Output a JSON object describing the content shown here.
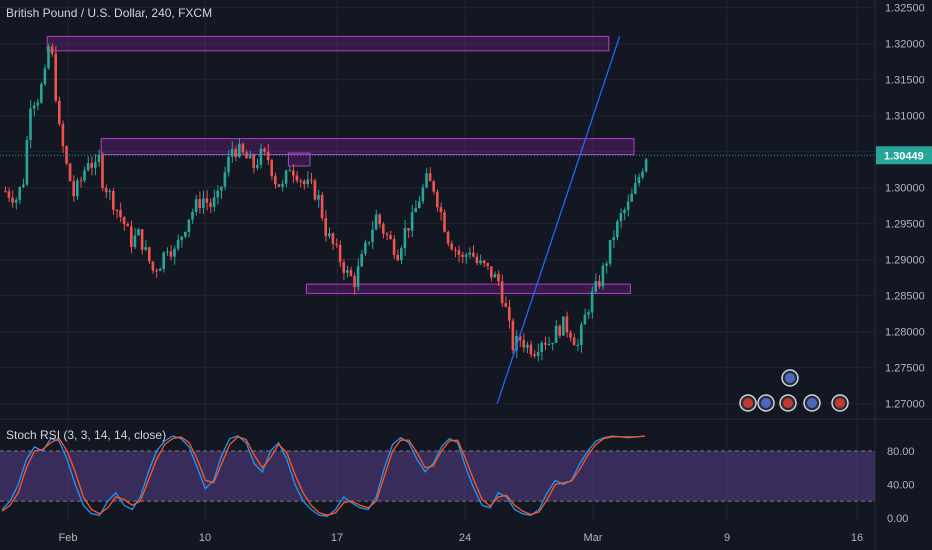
{
  "header": {
    "title": "British Pound / U.S. Dollar, 240, FXCM"
  },
  "rsi_panel": {
    "title": "Stoch RSI (3, 3, 14, 14, close)"
  },
  "colors": {
    "background": "#131722",
    "grid": "#1f2433",
    "up": "#26a69a",
    "down": "#ef5350",
    "zone_fill": "rgba(156,39,176,0.25)",
    "zone_stroke": "#b040d0",
    "trend_line": "#2962ff",
    "price_tag": "#26a69a",
    "k_line": "#2196f3",
    "d_line": "#ff5722",
    "rsi_band": "rgba(126,87,194,0.35)"
  },
  "chart_data": [
    {
      "type": "candlestick",
      "title": "British Pound / U.S. Dollar, 240, FXCM",
      "x_ticks": [
        "Feb",
        "10",
        "17",
        "24",
        "Mar",
        "9",
        "16"
      ],
      "y_ticks": [
        "1.32500",
        "1.32000",
        "1.31500",
        "1.31000",
        "1.30500",
        "1.30000",
        "1.29500",
        "1.29000",
        "1.28500",
        "1.28000",
        "1.27500",
        "1.27000"
      ],
      "ylim": [
        1.268,
        1.3255
      ],
      "current_price": "1.30449",
      "close_path": [
        [
          0,
          1.2995
        ],
        [
          3,
          1.2985
        ],
        [
          5,
          1.301
        ],
        [
          7,
          1.312
        ],
        [
          9,
          1.3125
        ],
        [
          11,
          1.3155
        ],
        [
          12,
          1.3195
        ],
        [
          13,
          1.318
        ],
        [
          14,
          1.313
        ],
        [
          15,
          1.308
        ],
        [
          17,
          1.303
        ],
        [
          19,
          1.299
        ],
        [
          21,
          1.301
        ],
        [
          23,
          1.304
        ],
        [
          25,
          1.3025
        ],
        [
          26,
          1.304
        ],
        [
          27,
          1.301
        ],
        [
          29,
          1.299
        ],
        [
          31,
          1.297
        ],
        [
          33,
          1.295
        ],
        [
          35,
          1.2925
        ],
        [
          37,
          1.2935
        ],
        [
          39,
          1.291
        ],
        [
          41,
          1.2885
        ],
        [
          43,
          1.2895
        ],
        [
          45,
          1.292
        ],
        [
          47,
          1.291
        ],
        [
          49,
          1.2935
        ],
        [
          51,
          1.296
        ],
        [
          53,
          1.2975
        ],
        [
          55,
          1.2985
        ],
        [
          57,
          1.2975
        ],
        [
          59,
          1.2985
        ],
        [
          61,
          1.302
        ],
        [
          63,
          1.3055
        ],
        [
          65,
          1.305
        ],
        [
          67,
          1.304
        ],
        [
          69,
          1.303
        ],
        [
          71,
          1.3045
        ],
        [
          73,
          1.304
        ],
        [
          75,
          1.301
        ],
        [
          77,
          1.3
        ],
        [
          79,
          1.303
        ],
        [
          81,
          1.302
        ],
        [
          83,
          1.3005
        ],
        [
          85,
          1.3
        ],
        [
          87,
          1.2985
        ],
        [
          89,
          1.294
        ],
        [
          91,
          1.292
        ],
        [
          93,
          1.29
        ],
        [
          95,
          1.288
        ],
        [
          97,
          1.287
        ],
        [
          99,
          1.29
        ],
        [
          101,
          1.293
        ],
        [
          103,
          1.296
        ],
        [
          105,
          1.294
        ],
        [
          107,
          1.2925
        ],
        [
          109,
          1.291
        ],
        [
          111,
          1.294
        ],
        [
          113,
          1.2955
        ],
        [
          115,
          1.2985
        ],
        [
          117,
          1.301
        ],
        [
          119,
          1.3
        ],
        [
          121,
          1.2965
        ],
        [
          123,
          1.293
        ],
        [
          125,
          1.2915
        ],
        [
          127,
          1.29
        ],
        [
          129,
          1.2915
        ],
        [
          131,
          1.2895
        ],
        [
          133,
          1.289
        ],
        [
          135,
          1.288
        ],
        [
          137,
          1.287
        ],
        [
          139,
          1.283
        ],
        [
          141,
          1.278
        ],
        [
          143,
          1.279
        ],
        [
          145,
          1.278
        ],
        [
          147,
          1.2775
        ],
        [
          149,
          1.279
        ],
        [
          151,
          1.2785
        ],
        [
          153,
          1.28
        ],
        [
          155,
          1.281
        ],
        [
          157,
          1.28
        ],
        [
          159,
          1.278
        ],
        [
          161,
          1.282
        ],
        [
          163,
          1.285
        ],
        [
          165,
          1.287
        ],
        [
          167,
          1.29
        ],
        [
          169,
          1.2935
        ],
        [
          171,
          1.296
        ],
        [
          173,
          1.2975
        ],
        [
          175,
          1.3
        ],
        [
          177,
          1.303
        ],
        [
          178,
          1.30449
        ]
      ],
      "zones": [
        {
          "x0": 12,
          "x1": 168,
          "y0": 1.319,
          "y1": 1.321
        },
        {
          "x0": 27,
          "x1": 175,
          "y0": 1.3046,
          "y1": 1.3068
        },
        {
          "x0": 79,
          "x1": 85,
          "y0": 1.303,
          "y1": 1.3048
        },
        {
          "x0": 84,
          "x1": 174,
          "y0": 1.2853,
          "y1": 1.2866
        }
      ],
      "trend_line": {
        "x0": 137,
        "y0": 1.27,
        "x1": 171,
        "y1": 1.321
      }
    },
    {
      "type": "line",
      "title": "Stoch RSI (3, 3, 14, 14, close)",
      "y_ticks": [
        "80.00",
        "40.00",
        "0.00"
      ],
      "ylim": [
        -5,
        110
      ],
      "band": [
        20,
        80
      ],
      "series": [
        {
          "values": [
            10,
            20,
            40,
            70,
            85,
            80,
            95,
            92,
            70,
            40,
            15,
            5,
            3,
            20,
            30,
            15,
            10,
            25,
            55,
            80,
            92,
            98,
            95,
            85,
            60,
            35,
            45,
            75,
            95,
            98,
            90,
            65,
            55,
            80,
            90,
            70,
            40,
            20,
            10,
            3,
            2,
            10,
            25,
            18,
            12,
            10,
            25,
            60,
            88,
            96,
            90,
            70,
            55,
            65,
            85,
            95,
            90,
            60,
            35,
            15,
            12,
            30,
            25,
            10,
            5,
            3,
            10,
            30,
            45,
            40,
            45,
            65,
            80,
            92,
            96,
            98,
            97,
            96,
            97,
            98
          ]
        },
        {
          "values": [
            8,
            15,
            30,
            60,
            80,
            82,
            90,
            95,
            80,
            55,
            25,
            10,
            5,
            12,
            25,
            22,
            15,
            20,
            45,
            70,
            88,
            95,
            97,
            90,
            70,
            45,
            42,
            65,
            88,
            97,
            94,
            75,
            60,
            72,
            88,
            78,
            52,
            30,
            15,
            6,
            3,
            6,
            18,
            20,
            15,
            12,
            20,
            50,
            80,
            93,
            93,
            78,
            60,
            62,
            80,
            92,
            93,
            70,
            45,
            22,
            14,
            25,
            27,
            15,
            8,
            4,
            7,
            22,
            40,
            42,
            44,
            58,
            75,
            88,
            95,
            97,
            97,
            97,
            97,
            98
          ]
        }
      ]
    }
  ]
}
